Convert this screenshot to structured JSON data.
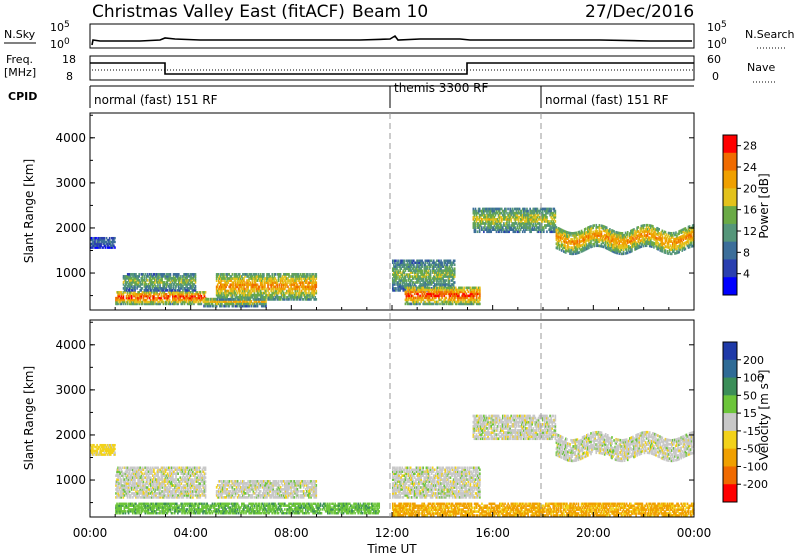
{
  "header": {
    "title": "Christmas Valley East (fitACF)",
    "beam": "Beam 10",
    "date": "27/Dec/2016"
  },
  "aux_panels": {
    "nsky": {
      "label": "N.Sky",
      "tick_top": "10^5",
      "tick_bottom": "10^0"
    },
    "nsearch": {
      "label": "N.Search",
      "tick_top": "10^5",
      "tick_bottom": "10^0"
    },
    "freq": {
      "label_line1": "Freq.",
      "label_line2": "[MHz]",
      "tick_top": "18",
      "tick_bottom": "8"
    },
    "nave": {
      "label": "Nave",
      "tick_top": "60",
      "tick_bottom": "0"
    },
    "cpid": {
      "label": "CPID",
      "segments": [
        {
          "label": "normal (fast) 151 RF"
        },
        {
          "label": "themis 3300 RF"
        },
        {
          "label": "normal (fast) 151 RF"
        }
      ]
    }
  },
  "colors": {
    "power_scale": [
      "#0000ff",
      "#2a3fb0",
      "#3c6e9a",
      "#55967a",
      "#6aaa46",
      "#e3c21c",
      "#f0a000",
      "#f06b00",
      "#ff0000"
    ],
    "velocity_scale": [
      "#1f3aa8",
      "#2f6b96",
      "#3b8e58",
      "#6cc53a",
      "#c8c8c8",
      "#f2d21a",
      "#f0a000",
      "#f06a00",
      "#ff0000"
    ]
  },
  "chart_data": [
    {
      "type": "heatmap",
      "panel": "power",
      "xlabel": "",
      "ylabel": "Slant Range [km]",
      "x_ticks": [
        "00:00",
        "04:00",
        "08:00",
        "12:00",
        "16:00",
        "20:00",
        "00:00"
      ],
      "y_ticks": [
        "1000",
        "2000",
        "3000",
        "4000"
      ],
      "ylim": [
        180,
        4550
      ],
      "x_range_hours": [
        0,
        24
      ],
      "colorbar": {
        "label": "Power [dB]",
        "ticks": [
          "4",
          "8",
          "12",
          "16",
          "20",
          "24",
          "28"
        ],
        "range": [
          0,
          30
        ]
      },
      "features": [
        {
          "start_h": 0.0,
          "end_h": 1.0,
          "range_km": [
            1550,
            1800
          ],
          "power_db": 8
        },
        {
          "start_h": 1.0,
          "end_h": 4.6,
          "range_km": [
            300,
            600
          ],
          "power_db": 28
        },
        {
          "start_h": 1.3,
          "end_h": 4.2,
          "range_km": [
            600,
            1000
          ],
          "power_db": 16
        },
        {
          "start_h": 4.5,
          "end_h": 7.0,
          "range_km": [
            250,
            450
          ],
          "power_db": 20
        },
        {
          "start_h": 5.0,
          "end_h": 9.0,
          "range_km": [
            400,
            1000
          ],
          "power_db": 24
        },
        {
          "start_h": 12.0,
          "end_h": 14.5,
          "range_km": [
            600,
            1300
          ],
          "power_db": 16
        },
        {
          "start_h": 12.5,
          "end_h": 15.5,
          "range_km": [
            300,
            700
          ],
          "power_db": 28
        },
        {
          "start_h": 15.2,
          "end_h": 18.5,
          "range_km": [
            1900,
            2450
          ],
          "power_db": 18
        },
        {
          "start_h": 18.5,
          "end_h": 24.0,
          "range_km": [
            1500,
            2000
          ],
          "power_db": 24
        }
      ]
    },
    {
      "type": "heatmap",
      "panel": "velocity",
      "xlabel": "Time UT",
      "ylabel": "Slant Range [km]",
      "x_ticks": [
        "00:00",
        "04:00",
        "08:00",
        "12:00",
        "16:00",
        "20:00",
        "00:00"
      ],
      "y_ticks": [
        "1000",
        "2000",
        "3000",
        "4000"
      ],
      "ylim": [
        180,
        4550
      ],
      "x_range_hours": [
        0,
        24
      ],
      "colorbar": {
        "label": "Velocity [m s^-1]",
        "ticks": [
          "200",
          "100",
          "50",
          "15",
          "-15",
          "-50",
          "-100",
          "-200"
        ],
        "range": [
          -250,
          250
        ]
      },
      "features": [
        {
          "start_h": 0.0,
          "end_h": 1.0,
          "range_km": [
            1550,
            1800
          ],
          "velocity": -30
        },
        {
          "start_h": 1.0,
          "end_h": 4.6,
          "range_km": [
            600,
            1300
          ],
          "velocity": 0
        },
        {
          "start_h": 1.0,
          "end_h": 11.5,
          "range_km": [
            250,
            500
          ],
          "velocity": 40
        },
        {
          "start_h": 5.0,
          "end_h": 9.0,
          "range_km": [
            600,
            1000
          ],
          "velocity": 0
        },
        {
          "start_h": 12.0,
          "end_h": 15.5,
          "range_km": [
            600,
            1300
          ],
          "velocity": 0
        },
        {
          "start_h": 12.0,
          "end_h": 24.0,
          "range_km": [
            200,
            500
          ],
          "velocity": -60
        },
        {
          "start_h": 15.2,
          "end_h": 18.5,
          "range_km": [
            1900,
            2450
          ],
          "velocity": 0
        },
        {
          "start_h": 18.5,
          "end_h": 24.0,
          "range_km": [
            1500,
            2000
          ],
          "velocity": 0
        }
      ]
    }
  ]
}
